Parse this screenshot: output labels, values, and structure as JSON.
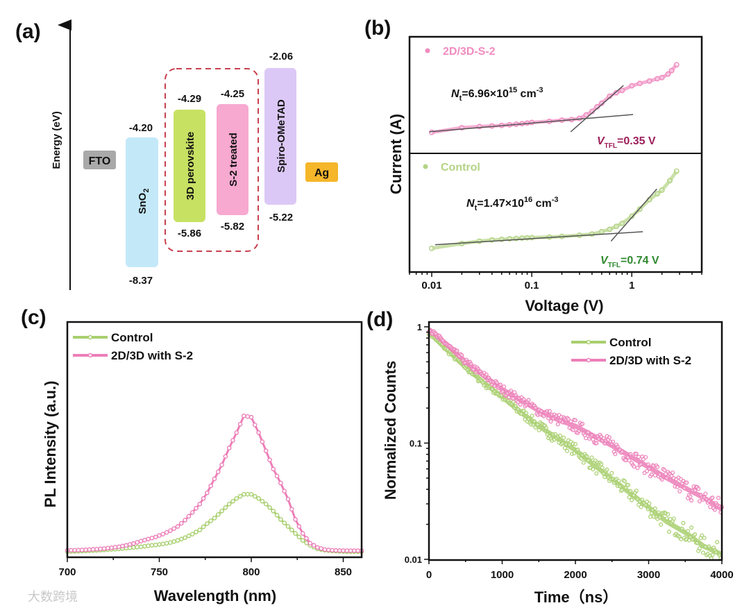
{
  "panel_labels": {
    "a": "(a)",
    "b": "(b)",
    "c": "(c)",
    "d": "(d)"
  },
  "watermark": "大数跨境",
  "energy_diagram": {
    "axis_label": "Energy (eV)",
    "layers": [
      {
        "name": "FTO",
        "color": "#a9a9a9"
      },
      {
        "name": "SnO",
        "sub": "2",
        "top": "-4.20",
        "bottom": "-8.37",
        "color": "#c3e9f9"
      },
      {
        "name": "3D perovskite",
        "top": "-4.29",
        "bottom": "-5.86",
        "color": "#c7e163"
      },
      {
        "name": "S-2 treated",
        "top": "-4.25",
        "bottom": "-5.82",
        "color": "#f7a9d0"
      },
      {
        "name": "Spiro-OMeTAD",
        "top": "-2.06",
        "bottom": "-5.22",
        "color": "#dcc8f6"
      },
      {
        "name": "Ag",
        "color": "#f5b62a"
      }
    ],
    "highlight_color": "#c8404e"
  },
  "chart_data": [
    {
      "id": "b",
      "type": "scatter",
      "xlabel": "Voltage (V)",
      "ylabel": "Current (A)",
      "xscale": "log",
      "xlim": [
        0.006,
        5
      ],
      "xticks": [
        "0.01",
        "0.1",
        "1"
      ],
      "xtick_values": [
        0.01,
        0.1,
        1
      ],
      "subpanels": [
        {
          "name": "2D/3D-S-2",
          "color": "#f08cc0",
          "ylim": [
            0,
            1
          ],
          "yunit": "log current (a.u.)",
          "x": [
            0.01,
            0.02,
            0.03,
            0.04,
            0.05,
            0.06,
            0.07,
            0.08,
            0.09,
            0.1,
            0.15,
            0.2,
            0.25,
            0.3,
            0.35,
            0.4,
            0.45,
            0.5,
            0.6,
            0.7,
            0.8,
            1.0,
            1.2,
            1.5,
            1.8,
            2.0,
            2.3,
            2.5,
            2.8
          ],
          "y": [
            0.18,
            0.22,
            0.23,
            0.235,
            0.24,
            0.245,
            0.25,
            0.255,
            0.26,
            0.265,
            0.275,
            0.285,
            0.29,
            0.3,
            0.33,
            0.36,
            0.4,
            0.43,
            0.49,
            0.52,
            0.54,
            0.58,
            0.6,
            0.62,
            0.64,
            0.65,
            0.68,
            0.71,
            0.76
          ],
          "fit_lines": [
            {
              "x": [
                0.0095,
                1.03
              ],
              "y": [
                0.185,
                0.333
              ]
            },
            {
              "x": [
                0.245,
                0.826
              ],
              "y": [
                0.185,
                0.583
              ]
            }
          ],
          "nt_label": {
            "symbol": "N",
            "sub": "t",
            "value": "=6.96×10",
            "exp": "15",
            "unit": " cm",
            "unit_exp": "-3"
          },
          "vtfl_label": {
            "symbol": "V",
            "sub": "TFL",
            "value": "=0.35 V",
            "color": "#9c1e5a"
          }
        },
        {
          "name": "Control",
          "color": "#b3d385",
          "ylim": [
            0,
            1
          ],
          "yunit": "log current (a.u.)",
          "x": [
            0.01,
            0.02,
            0.03,
            0.04,
            0.05,
            0.06,
            0.07,
            0.08,
            0.09,
            0.1,
            0.15,
            0.2,
            0.3,
            0.4,
            0.5,
            0.6,
            0.7,
            0.8,
            1.0,
            1.2,
            1.5,
            1.8,
            2.0,
            2.4,
            2.8
          ],
          "y": [
            0.2,
            0.24,
            0.26,
            0.27,
            0.275,
            0.28,
            0.283,
            0.286,
            0.288,
            0.29,
            0.295,
            0.3,
            0.31,
            0.32,
            0.34,
            0.36,
            0.385,
            0.41,
            0.47,
            0.53,
            0.61,
            0.66,
            0.69,
            0.77,
            0.85
          ],
          "fit_lines": [
            {
              "x": [
                0.0108,
                1.29
              ],
              "y": [
                0.23,
                0.34
              ]
            },
            {
              "x": [
                0.62,
                1.78
              ],
              "y": [
                0.26,
                0.7
              ]
            }
          ],
          "nt_label": {
            "symbol": "N",
            "sub": "t",
            "value": "=1.47×10",
            "exp": "16",
            "unit": " cm",
            "unit_exp": "-3"
          },
          "vtfl_label": {
            "symbol": "V",
            "sub": "TFL",
            "value": "=0.74 V",
            "color": "#2f8a2f"
          }
        }
      ]
    },
    {
      "id": "c",
      "type": "line",
      "xlabel": "Wavelength (nm)",
      "ylabel": "PL Intensity (a.u.)",
      "xlim": [
        700,
        860
      ],
      "ylim": [
        -0.03,
        1.65
      ],
      "xticks": [
        "700",
        "750",
        "800",
        "850"
      ],
      "xtick_values": [
        700,
        750,
        800,
        850
      ],
      "legend_position": "top-left",
      "x": [
        700,
        704,
        708,
        712,
        716,
        720,
        724,
        728,
        732,
        736,
        740,
        744,
        748,
        752,
        756,
        760,
        764,
        768,
        772,
        776,
        780,
        784,
        788,
        792,
        796,
        800,
        804,
        808,
        812,
        816,
        820,
        824,
        828,
        832,
        836,
        840,
        844,
        848,
        852,
        856,
        860
      ],
      "series": [
        {
          "name": "Control",
          "color": "#a8cf6e",
          "values": [
            0.01,
            0.012,
            0.014,
            0.016,
            0.019,
            0.022,
            0.026,
            0.03,
            0.035,
            0.04,
            0.045,
            0.052,
            0.058,
            0.065,
            0.075,
            0.09,
            0.11,
            0.135,
            0.165,
            0.21,
            0.25,
            0.3,
            0.35,
            0.39,
            0.42,
            0.42,
            0.39,
            0.35,
            0.3,
            0.24,
            0.19,
            0.14,
            0.09,
            0.055,
            0.03,
            0.02,
            0.015,
            0.012,
            0.01,
            0.01,
            0.01
          ]
        },
        {
          "name": "2D/3D with S-2",
          "color": "#ec7fb8",
          "values": [
            0.02,
            0.02,
            0.022,
            0.025,
            0.028,
            0.032,
            0.038,
            0.045,
            0.055,
            0.068,
            0.085,
            0.1,
            0.115,
            0.135,
            0.16,
            0.19,
            0.235,
            0.29,
            0.35,
            0.43,
            0.53,
            0.63,
            0.75,
            0.86,
            0.98,
            0.97,
            0.86,
            0.73,
            0.6,
            0.5,
            0.385,
            0.24,
            0.14,
            0.07,
            0.04,
            0.025,
            0.02,
            0.018,
            0.017,
            0.017,
            0.017
          ]
        }
      ]
    },
    {
      "id": "d",
      "type": "scatter",
      "xlabel": "Time（ns）",
      "ylabel": "Normalized Counts",
      "xlim": [
        0,
        4000
      ],
      "ylim": [
        0.01,
        1.1
      ],
      "yscale": "log",
      "xticks": [
        "0",
        "1000",
        "2000",
        "3000",
        "4000"
      ],
      "xtick_values": [
        0,
        1000,
        2000,
        3000,
        4000
      ],
      "yticks": [
        "1",
        "0.1",
        "0.01"
      ],
      "ytick_values": [
        1,
        0.1,
        0.01
      ],
      "legend_position": "top-right",
      "x": [
        0,
        250,
        500,
        750,
        1000,
        1250,
        1500,
        1750,
        2000,
        2250,
        2500,
        2750,
        3000,
        3250,
        3500,
        3750,
        4000
      ],
      "series": [
        {
          "name": "Control",
          "color": "#a8cf6e",
          "values": [
            0.9,
            0.63,
            0.45,
            0.33,
            0.25,
            0.185,
            0.14,
            0.11,
            0.087,
            0.065,
            0.049,
            0.037,
            0.028,
            0.021,
            0.017,
            0.013,
            0.011
          ]
        },
        {
          "name": "2D/3D with S-2",
          "color": "#ec7fb8",
          "values": [
            0.95,
            0.7,
            0.5,
            0.38,
            0.29,
            0.235,
            0.19,
            0.16,
            0.14,
            0.115,
            0.095,
            0.077,
            0.062,
            0.05,
            0.041,
            0.034,
            0.027
          ]
        }
      ]
    }
  ]
}
